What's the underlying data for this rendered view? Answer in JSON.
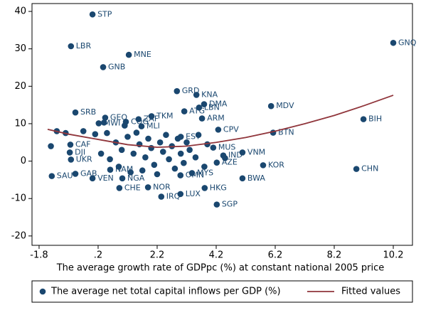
{
  "chart_data": {
    "type": "scatter",
    "x_label": "The average growth rate of GDPpc (%) at constant national 2005 price",
    "xlim": [
      -2.04,
      10.85
    ],
    "ylim": [
      -22.5,
      42.1
    ],
    "xticks": [
      -1.8,
      {
        "value": 0.2,
        "label": ".2"
      },
      2.2,
      4.2,
      6.2,
      8.2,
      10.2
    ],
    "yticks": [
      40,
      30,
      20,
      10,
      0,
      -10,
      -20
    ],
    "grid": false,
    "legend": "bottom",
    "series": [
      {
        "name": "The average net total capital inflows per GDP (%)",
        "color": "#1a476f",
        "type": "scatter",
        "x": [
          0.01,
          -0.72,
          1.24,
          0.37,
          10.2,
          2.87,
          3.53,
          3.12,
          3.79,
          3.62,
          6.06,
          3.72,
          2.01,
          9.19,
          6.13,
          4.27,
          -0.57,
          0.44,
          1.14,
          1.57,
          1.67,
          -0.74,
          -0.76,
          -0.72,
          -0.57,
          -1.37,
          0.01,
          0.61,
          1.02,
          0.92,
          1.89,
          2.34,
          2.99,
          3.81,
          4.22,
          2.99,
          3.38,
          5.09,
          5.79,
          8.95,
          5.09,
          4.22,
          4.1,
          4.44,
          3.0,
          0.22,
          0.5,
          0.8,
          1.0,
          1.2,
          1.4,
          1.5,
          1.6,
          1.8,
          1.9,
          2.0,
          2.1,
          2.3,
          2.4,
          2.5,
          2.6,
          2.7,
          2.8,
          2.9,
          3.0,
          3.1,
          3.2,
          3.3,
          3.5,
          3.6,
          3.8,
          0.3,
          0.6,
          0.9,
          1.3,
          1.7,
          2.2,
          -1.2,
          -0.9,
          -1.4,
          -0.3,
          0.1,
          3.9,
          4.5,
          1.1,
          0.4
        ],
        "values": [
          39.2,
          30.7,
          28.4,
          25.1,
          31.6,
          18.7,
          17.7,
          13.3,
          15.2,
          14.3,
          14.7,
          11.4,
          12.0,
          11.2,
          7.6,
          8.4,
          13.0,
          11.6,
          10.5,
          11.2,
          9.3,
          4.4,
          2.3,
          0.4,
          -3.4,
          -4.0,
          -4.6,
          -2.3,
          -4.6,
          -7.2,
          -7.0,
          -9.5,
          -8.8,
          -7.2,
          -11.6,
          -3.8,
          -3.2,
          -4.6,
          -1.1,
          -2.1,
          2.3,
          -0.4,
          3.6,
          1.5,
          6.5,
          10.1,
          7.5,
          5,
          3,
          6.5,
          2,
          7.6,
          4.5,
          1,
          6,
          3.5,
          -1,
          5,
          2.5,
          7,
          0.5,
          4,
          -2,
          6,
          2,
          -0.5,
          5,
          3,
          1,
          7,
          -1.5,
          2,
          0.5,
          -1.5,
          -3,
          -2.5,
          -3.5,
          8,
          7.5,
          4,
          8,
          7.2,
          4.5,
          0.8,
          9.5,
          10.3
        ],
        "labels": [
          "STP",
          "LBR",
          "MNE",
          "GNB",
          "GNQ",
          "GRD",
          "KNA",
          "ATG",
          "DMA",
          "LBN",
          "MDV",
          "ARM",
          "TKM",
          "BIH",
          "BTN",
          "CPV",
          "SRB",
          "GEO",
          "COG",
          "ZAF",
          "MLI",
          "CAF",
          "DJI",
          "UKR",
          "GAB",
          "SAU",
          "VEN",
          "NAM",
          "NGA",
          "CHE",
          "NOR",
          "IRQ",
          "LUX",
          "HKG",
          "SGP",
          "OMN",
          "MYS",
          "BWA",
          "KOR",
          "CHN",
          "VNM",
          "AZE",
          "MUS",
          "IND",
          "EST",
          "MWI",
          null,
          null,
          null,
          null,
          null,
          null,
          null,
          null,
          null,
          null,
          null,
          null,
          null,
          null,
          null,
          null,
          null,
          null,
          null,
          null,
          null,
          null,
          null,
          null,
          null,
          null,
          null,
          null,
          null,
          null,
          null,
          null,
          null,
          null,
          null,
          null,
          null,
          null,
          null,
          null
        ]
      },
      {
        "name": "Fitted values",
        "color": "#90353b",
        "type": "line",
        "x": [
          -1.51,
          -0.8,
          0.2,
          1.2,
          2.2,
          3.2,
          4.2,
          5.2,
          6.2,
          7.2,
          8.2,
          9.2,
          10.2
        ],
        "values": [
          8.5,
          7.2,
          5.8,
          4.4,
          3.7,
          4.0,
          5.0,
          6.3,
          8.0,
          10.0,
          12.2,
          14.8,
          17.6
        ]
      }
    ]
  }
}
